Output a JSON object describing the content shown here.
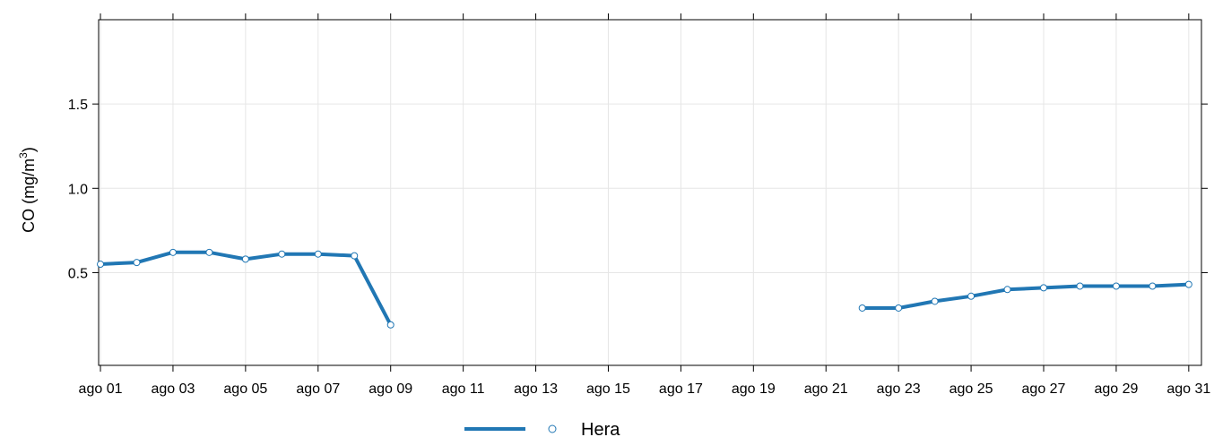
{
  "chart_data": {
    "type": "line",
    "ylabel": "CO (mg/m",
    "ylabel_sup": "3",
    "ylabel_close": ")",
    "ylim": [
      -0.05,
      2.0
    ],
    "yticks": [
      0.5,
      1.0,
      1.5
    ],
    "ytick_labels": [
      "0.5",
      "1.0",
      "1.5"
    ],
    "xlim": [
      0.95,
      31.35
    ],
    "xticks": [
      1,
      3,
      5,
      7,
      9,
      11,
      13,
      15,
      17,
      19,
      21,
      23,
      25,
      27,
      29,
      31
    ],
    "xtick_labels": [
      "ago 01",
      "ago 03",
      "ago 05",
      "ago 07",
      "ago 09",
      "ago 11",
      "ago 13",
      "ago 15",
      "ago 17",
      "ago 19",
      "ago 21",
      "ago 23",
      "ago 25",
      "ago 27",
      "ago 29",
      "ago 31"
    ],
    "grid": true,
    "legend_position": "bottom",
    "series": [
      {
        "name": "Hera",
        "color": "#2177b4",
        "x": [
          1,
          2,
          3,
          4,
          5,
          6,
          7,
          8,
          9,
          22,
          23,
          24,
          25,
          26,
          27,
          28,
          29,
          30,
          31
        ],
        "values": [
          0.55,
          0.56,
          0.62,
          0.62,
          0.58,
          0.61,
          0.61,
          0.6,
          0.19,
          0.29,
          0.29,
          0.33,
          0.36,
          0.4,
          0.41,
          0.42,
          0.42,
          0.42,
          0.43
        ],
        "segments": [
          [
            0,
            8
          ],
          [
            9,
            18
          ]
        ]
      }
    ]
  }
}
